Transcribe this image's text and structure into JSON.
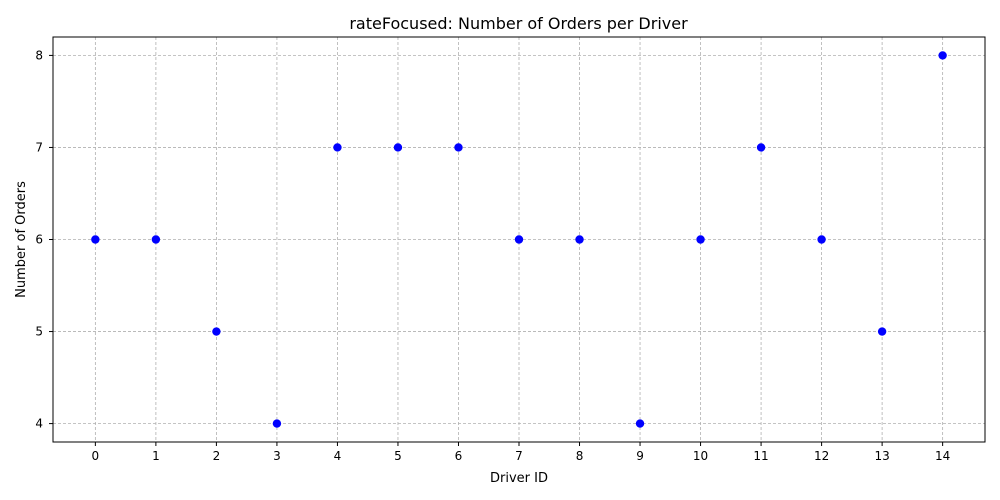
{
  "chart_data": {
    "type": "scatter",
    "title": "rateFocused: Number of Orders per Driver",
    "xlabel": "Driver ID",
    "ylabel": "Number of Orders",
    "x": [
      0,
      1,
      2,
      3,
      4,
      5,
      6,
      7,
      8,
      9,
      10,
      11,
      12,
      13,
      14
    ],
    "y": [
      6,
      6,
      5,
      4,
      7,
      7,
      7,
      6,
      6,
      4,
      6,
      7,
      6,
      5,
      8
    ],
    "xticks": [
      "0",
      "1",
      "2",
      "3",
      "4",
      "5",
      "6",
      "7",
      "8",
      "9",
      "10",
      "11",
      "12",
      "13",
      "14"
    ],
    "yticks": [
      "4",
      "5",
      "6",
      "7",
      "8"
    ],
    "xlim": [
      -0.7,
      14.7
    ],
    "ylim": [
      3.8,
      8.2
    ],
    "grid": true,
    "marker_color": "#0000ff"
  }
}
